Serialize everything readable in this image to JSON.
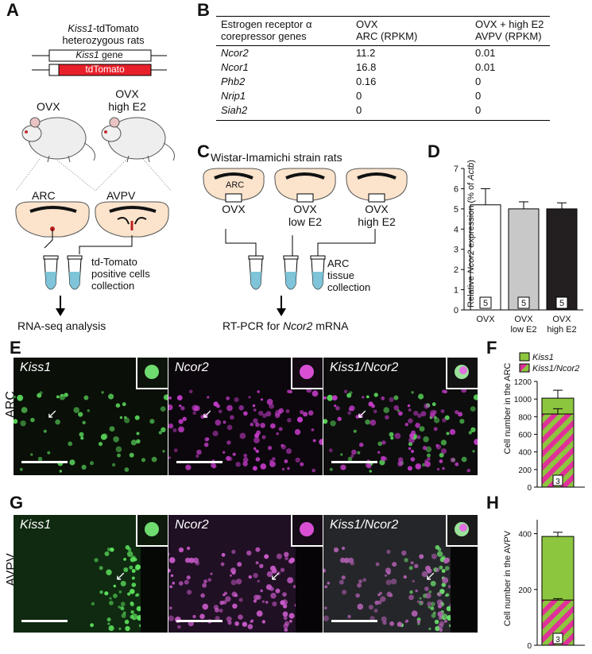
{
  "panels": {
    "A": "A",
    "B": "B",
    "C": "C",
    "D": "D",
    "E": "E",
    "F": "F",
    "G": "G",
    "H": "H"
  },
  "panelA": {
    "title_gene": "Kiss1",
    "title_rest": "-tdTomato",
    "title_line2": "heterozygous rats",
    "construct_gene": "Kiss1",
    "construct_gene_suffix": " gene",
    "construct_reporter": "tdTomato",
    "rat_left": "OVX",
    "rat_right_line1": "OVX",
    "rat_right_line2": "high E2",
    "region_left": "ARC",
    "region_right": "AVPV",
    "cells_line1": "td-Tomato",
    "cells_line2": "positive cells",
    "cells_line3": "collection",
    "analysis": "RNA-seq analysis"
  },
  "panelB": {
    "columns": [
      "Estrogen receptor α\ncorepressor genes",
      "OVX\nARC (RPKM)",
      "OVX + high E2\nAVPV (RPKM)"
    ],
    "rows": [
      {
        "gene": "Ncor2",
        "arc": "11.2",
        "avpv": "0.01"
      },
      {
        "gene": "Ncor1",
        "arc": "16.8",
        "avpv": "0.01"
      },
      {
        "gene": "Phb2",
        "arc": "0.16",
        "avpv": "0"
      },
      {
        "gene": "Nrip1",
        "arc": "0",
        "avpv": "0"
      },
      {
        "gene": "Siah2",
        "arc": "0",
        "avpv": "0"
      }
    ]
  },
  "panelC": {
    "title": "Wistar-Imamichi strain rats",
    "region": "ARC",
    "groups": [
      {
        "line1": "OVX",
        "line2": ""
      },
      {
        "line1": "OVX",
        "line2": "low E2"
      },
      {
        "line1": "OVX",
        "line2": "high E2"
      }
    ],
    "tissue_line1": "ARC",
    "tissue_line2": "tissue",
    "tissue_line3": "collection",
    "analysis_prefix": "RT-PCR for ",
    "analysis_gene": "Ncor2",
    "analysis_suffix": " mRNA"
  },
  "panelE": {
    "row_label": "ARC",
    "channels": [
      "Kiss1",
      "Ncor2",
      "Kiss1/Ncor2"
    ]
  },
  "panelG": {
    "row_label": "AVPV",
    "channels": [
      "Kiss1",
      "Ncor2",
      "Kiss1/Ncor2"
    ]
  },
  "colors": {
    "kiss1": "#8cc63f",
    "ncor2": "#e0309a",
    "bar_ovx": "#ffffff",
    "bar_low": "#c8c8c8",
    "bar_high": "#231f20",
    "tdtomato": "#e8202a"
  },
  "chart_data": [
    {
      "id": "D",
      "type": "bar",
      "ylabel_parts": [
        "Relative ",
        "Ncor2",
        " expression (% of ",
        "Actb",
        ")"
      ],
      "ylim": [
        0,
        7
      ],
      "yticks": [
        "0",
        "1",
        "2",
        "3",
        "4",
        "5",
        "6",
        "7"
      ],
      "categories": [
        {
          "line1": "OVX",
          "line2": ""
        },
        {
          "line1": "OVX",
          "line2": "low E2"
        },
        {
          "line1": "OVX",
          "line2": "high E2"
        }
      ],
      "values": [
        5.2,
        5.0,
        5.0
      ],
      "errors": [
        0.8,
        0.35,
        0.3
      ],
      "n": [
        "5",
        "5",
        "5"
      ]
    },
    {
      "id": "F",
      "type": "bar",
      "stacked": true,
      "ylabel": "Cell number in the ARC",
      "ylim": [
        0,
        1200
      ],
      "yticks": [
        "0",
        "200",
        "400",
        "600",
        "800",
        "1000",
        "1200"
      ],
      "series": [
        {
          "name": "Kiss1",
          "value": 1010,
          "error": 90
        },
        {
          "name": "Kiss1/Ncor2",
          "value": 830,
          "error": 60
        }
      ],
      "legend": [
        "Kiss1",
        "Kiss1/Ncor2"
      ],
      "n": "3"
    },
    {
      "id": "H",
      "type": "bar",
      "stacked": true,
      "ylabel": "Cell number in the AVPV",
      "ylim": [
        0,
        450
      ],
      "yticks": [
        "0",
        "200",
        "400"
      ],
      "series": [
        {
          "name": "Kiss1",
          "value": 390,
          "error": 15
        },
        {
          "name": "Kiss1/Ncor2",
          "value": 162,
          "error": 5
        }
      ],
      "n": "3"
    }
  ]
}
